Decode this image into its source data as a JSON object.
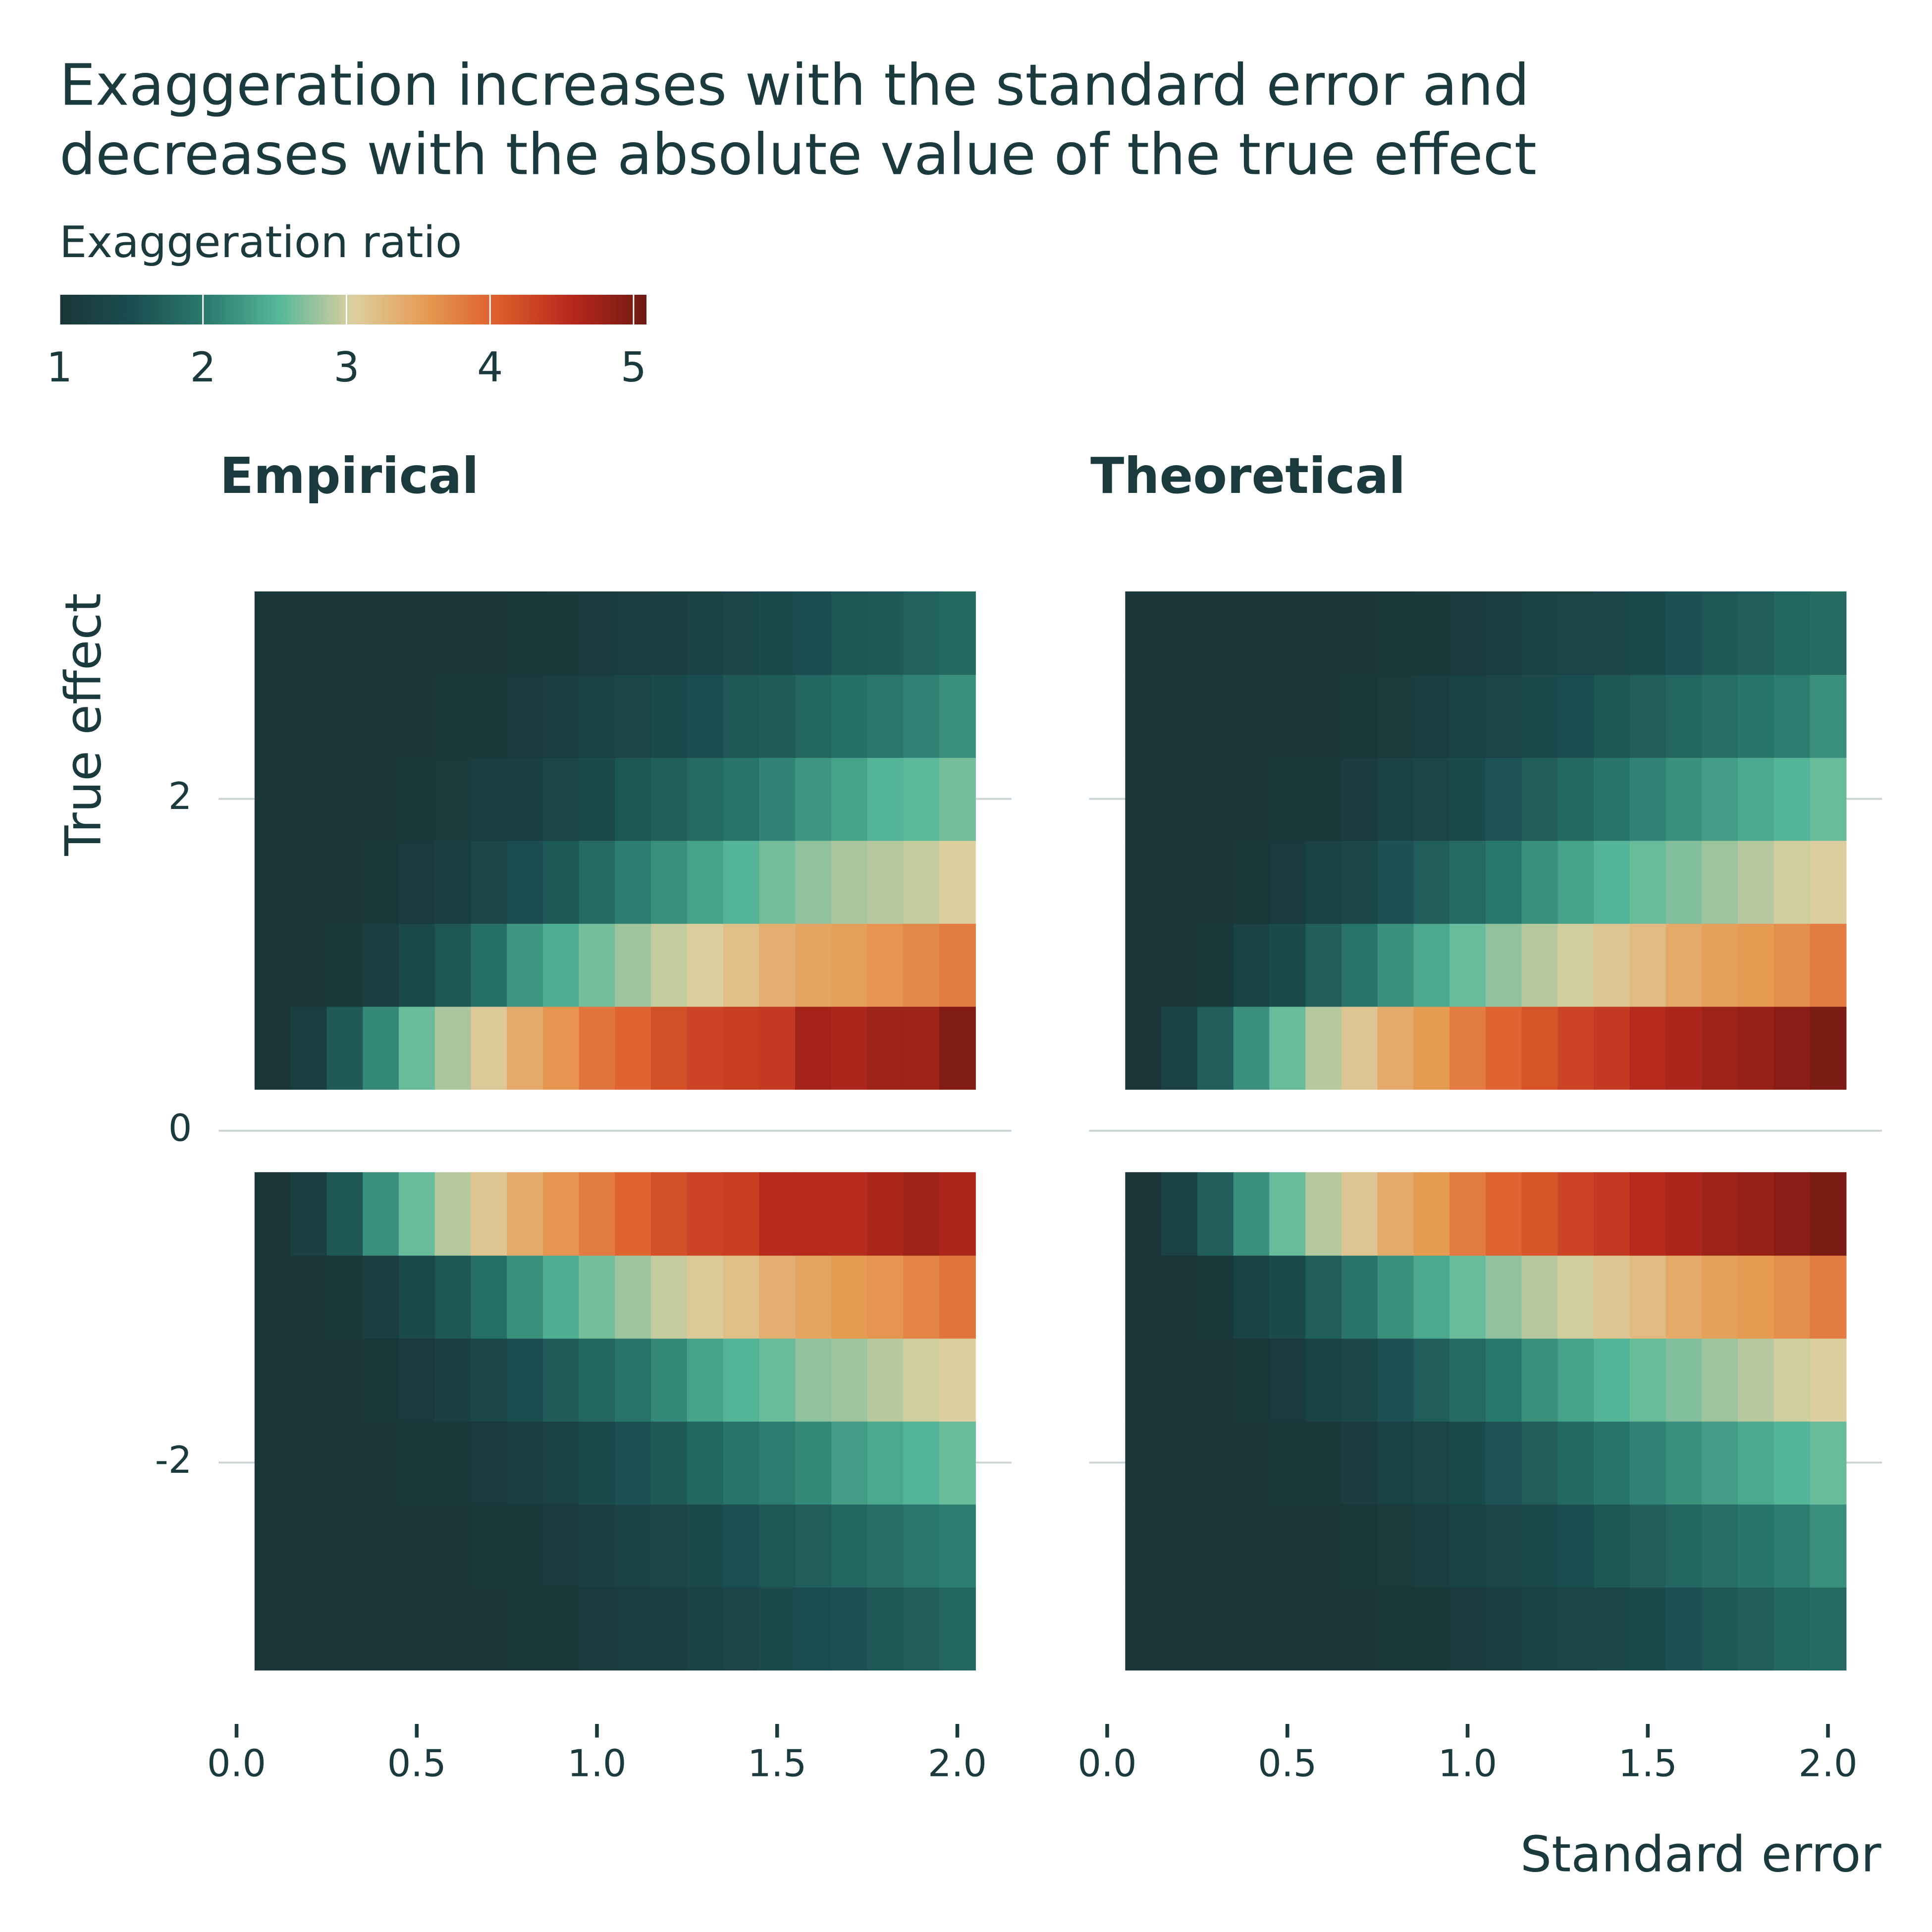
{
  "chart_data": {
    "type": "heatmap",
    "title": [
      "Exaggeration increases with the standard error and",
      "decreases with the absolute value of the true effect"
    ],
    "xlabel": "Standard error",
    "ylabel": "True effect",
    "colorbar": {
      "title": "Exaggeration ratio",
      "lim": [
        1,
        5.09
      ],
      "ticks": [
        1,
        2,
        3,
        4,
        5
      ],
      "colors": [
        "#1a3638",
        "#1b4d50",
        "#2a7a6e",
        "#57b89a",
        "#dccfa0",
        "#e69a52",
        "#dd5c2c",
        "#b5281c",
        "#6e1812"
      ]
    },
    "xlim": [
      -0.05,
      2.15
    ],
    "ylim": [
      -3.575,
      3.575
    ],
    "yticks": [
      -2,
      0,
      2
    ],
    "grid": true,
    "panels": [
      {
        "title": "Empirical",
        "x": [
          0.1,
          0.2,
          0.3,
          0.4,
          0.5,
          0.6,
          0.7,
          0.8,
          0.9,
          1.0,
          1.1,
          1.2,
          1.3,
          1.4,
          1.5,
          1.6,
          1.7,
          1.8,
          1.9,
          2.0
        ],
        "y": [
          -3,
          -2.5,
          -2,
          -1.5,
          -1,
          -0.5,
          0.5,
          1,
          1.5,
          2,
          2.5,
          3
        ],
        "xticks": [
          {
            "value": 0,
            "label": "0.0"
          },
          0.5,
          {
            "value": 1,
            "label": "1.0"
          },
          1.5,
          {
            "value": 2,
            "label": "2.0"
          }
        ],
        "values": [
          [
            1,
            1,
            1,
            1,
            1,
            1,
            1.01,
            1.03,
            1.05,
            1.1,
            1.15,
            1.2,
            1.28,
            1.34,
            1.42,
            1.5,
            1.55,
            1.62,
            1.7,
            1.78
          ],
          [
            1,
            1,
            1,
            1,
            1,
            1.01,
            1.03,
            1.07,
            1.12,
            1.2,
            1.28,
            1.35,
            1.42,
            1.52,
            1.62,
            1.7,
            1.78,
            1.88,
            1.98,
            2.05
          ],
          [
            1,
            1,
            1,
            1,
            1.02,
            1.06,
            1.12,
            1.2,
            1.3,
            1.42,
            1.55,
            1.65,
            1.8,
            1.95,
            2.05,
            2.15,
            2.3,
            2.4,
            2.5,
            2.6
          ],
          [
            1,
            1,
            1,
            1.04,
            1.1,
            1.22,
            1.35,
            1.5,
            1.68,
            1.8,
            1.95,
            2.15,
            2.35,
            2.5,
            2.6,
            2.75,
            2.8,
            2.9,
            3.0,
            3.05
          ],
          [
            1,
            1,
            1.05,
            1.2,
            1.4,
            1.6,
            1.9,
            2.2,
            2.45,
            2.65,
            2.8,
            2.95,
            3.1,
            3.2,
            3.35,
            3.45,
            3.55,
            3.6,
            3.75,
            3.85
          ],
          [
            1,
            1.2,
            1.6,
            2.2,
            2.6,
            2.9,
            3.15,
            3.4,
            3.6,
            3.8,
            4.0,
            4.2,
            4.3,
            4.35,
            4.55,
            4.55,
            4.55,
            4.65,
            4.75,
            4.65
          ],
          [
            1,
            1.15,
            1.65,
            2.15,
            2.6,
            2.85,
            3.1,
            3.4,
            3.6,
            3.85,
            4.0,
            4.2,
            4.3,
            4.35,
            4.4,
            4.7,
            4.65,
            4.75,
            4.75,
            4.95
          ],
          [
            1,
            1,
            1.05,
            1.2,
            1.4,
            1.6,
            1.9,
            2.25,
            2.45,
            2.65,
            2.8,
            2.95,
            3.05,
            3.2,
            3.35,
            3.45,
            3.5,
            3.6,
            3.7,
            3.8
          ],
          [
            1,
            1,
            1,
            1.05,
            1.1,
            1.2,
            1.35,
            1.5,
            1.65,
            1.85,
            2.05,
            2.2,
            2.35,
            2.5,
            2.65,
            2.75,
            2.85,
            2.9,
            2.95,
            3.05
          ],
          [
            1,
            1,
            1,
            1,
            1.03,
            1.08,
            1.15,
            1.22,
            1.35,
            1.45,
            1.6,
            1.72,
            1.85,
            1.95,
            2.1,
            2.25,
            2.35,
            2.5,
            2.55,
            2.65
          ],
          [
            1,
            1,
            1,
            1,
            1,
            1.02,
            1.05,
            1.1,
            1.16,
            1.24,
            1.35,
            1.42,
            1.5,
            1.62,
            1.68,
            1.8,
            1.9,
            1.98,
            2.1,
            2.2
          ],
          [
            1,
            1,
            1,
            1,
            1,
            1,
            1.01,
            1.04,
            1.06,
            1.12,
            1.15,
            1.22,
            1.3,
            1.36,
            1.45,
            1.5,
            1.6,
            1.65,
            1.75,
            1.82
          ]
        ]
      },
      {
        "title": "Theoretical",
        "x": [
          0.1,
          0.2,
          0.3,
          0.4,
          0.5,
          0.6,
          0.7,
          0.8,
          0.9,
          1.0,
          1.1,
          1.2,
          1.3,
          1.4,
          1.5,
          1.6,
          1.7,
          1.8,
          1.9,
          2.0
        ],
        "y": [
          -3,
          -2.5,
          -2,
          -1.5,
          -1,
          -0.5,
          0.5,
          1,
          1.5,
          2,
          2.5,
          3
        ],
        "xticks": [
          {
            "value": 0,
            "label": "0.0"
          },
          0.5,
          {
            "value": 1,
            "label": "1.0"
          },
          1.5,
          {
            "value": 2,
            "label": "2.0"
          }
        ],
        "values": [
          [
            1,
            1,
            1,
            1,
            1,
            1,
            1.01,
            1.03,
            1.07,
            1.1,
            1.17,
            1.25,
            1.32,
            1.38,
            1.45,
            1.55,
            1.62,
            1.7,
            1.78,
            1.85
          ],
          [
            1,
            1,
            1,
            1,
            1,
            1.01,
            1.04,
            1.08,
            1.15,
            1.25,
            1.33,
            1.42,
            1.5,
            1.6,
            1.7,
            1.78,
            1.88,
            1.97,
            2.05,
            2.2
          ],
          [
            1,
            1,
            1,
            1,
            1.02,
            1.07,
            1.13,
            1.25,
            1.35,
            1.45,
            1.58,
            1.7,
            1.82,
            1.95,
            2.1,
            2.2,
            2.3,
            2.4,
            2.5,
            2.6
          ],
          [
            1,
            1,
            1,
            1.03,
            1.1,
            1.25,
            1.38,
            1.55,
            1.7,
            1.85,
            2.0,
            2.2,
            2.35,
            2.5,
            2.6,
            2.7,
            2.8,
            2.9,
            3.0,
            3.05
          ],
          [
            1,
            1,
            1.07,
            1.25,
            1.45,
            1.7,
            1.95,
            2.2,
            2.4,
            2.6,
            2.75,
            2.9,
            3.0,
            3.15,
            3.25,
            3.4,
            3.5,
            3.55,
            3.65,
            3.8
          ],
          [
            1,
            1.25,
            1.7,
            2.2,
            2.6,
            2.9,
            3.15,
            3.4,
            3.55,
            3.8,
            4.0,
            4.15,
            4.3,
            4.4,
            4.55,
            4.65,
            4.75,
            4.8,
            4.9,
            5.0
          ],
          [
            1,
            1.25,
            1.7,
            2.2,
            2.6,
            2.9,
            3.15,
            3.4,
            3.55,
            3.8,
            4.0,
            4.15,
            4.3,
            4.4,
            4.55,
            4.65,
            4.75,
            4.8,
            4.9,
            5.0
          ],
          [
            1,
            1,
            1.07,
            1.25,
            1.45,
            1.7,
            1.95,
            2.2,
            2.4,
            2.6,
            2.75,
            2.9,
            3.0,
            3.15,
            3.25,
            3.4,
            3.5,
            3.55,
            3.65,
            3.8
          ],
          [
            1,
            1,
            1,
            1.03,
            1.1,
            1.25,
            1.38,
            1.55,
            1.7,
            1.85,
            2.0,
            2.2,
            2.35,
            2.5,
            2.6,
            2.7,
            2.8,
            2.9,
            3.0,
            3.05
          ],
          [
            1,
            1,
            1,
            1,
            1.02,
            1.07,
            1.13,
            1.25,
            1.35,
            1.45,
            1.58,
            1.7,
            1.82,
            1.95,
            2.1,
            2.2,
            2.3,
            2.4,
            2.5,
            2.6
          ],
          [
            1,
            1,
            1,
            1,
            1,
            1.01,
            1.04,
            1.08,
            1.15,
            1.25,
            1.33,
            1.42,
            1.5,
            1.6,
            1.7,
            1.78,
            1.88,
            1.97,
            2.05,
            2.2
          ],
          [
            1,
            1,
            1,
            1,
            1,
            1,
            1.01,
            1.03,
            1.07,
            1.1,
            1.17,
            1.25,
            1.32,
            1.38,
            1.45,
            1.55,
            1.62,
            1.7,
            1.78,
            1.85
          ]
        ]
      }
    ]
  }
}
